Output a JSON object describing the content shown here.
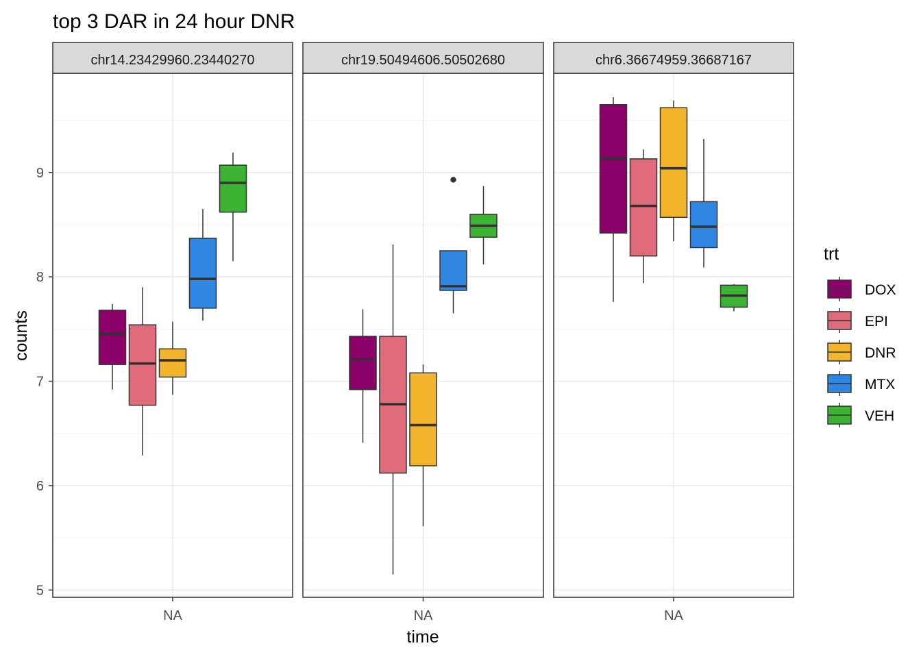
{
  "chart_data": {
    "type": "boxplot",
    "title": "top 3 DAR in 24 hour DNR",
    "xlabel": "time",
    "ylabel": "counts",
    "x_tick": "NA",
    "ylim": [
      4.93,
      9.95
    ],
    "y_ticks": [
      5,
      6,
      7,
      8,
      9
    ],
    "grid": true,
    "legend_title": "trt",
    "legend_position": "right",
    "groups": [
      {
        "name": "DOX",
        "color": "#8B0069"
      },
      {
        "name": "EPI",
        "color": "#E06C7B"
      },
      {
        "name": "DNR",
        "color": "#F1B42B"
      },
      {
        "name": "MTX",
        "color": "#2F87E3"
      },
      {
        "name": "VEH",
        "color": "#3CB332"
      }
    ],
    "panels": [
      {
        "label": "chr14.23429960.23440270",
        "boxes": [
          {
            "group": "DOX",
            "min": 6.92,
            "q1": 7.16,
            "median": 7.45,
            "q3": 7.68,
            "max": 7.74
          },
          {
            "group": "EPI",
            "min": 6.29,
            "q1": 6.77,
            "median": 7.17,
            "q3": 7.54,
            "max": 7.9
          },
          {
            "group": "DNR",
            "min": 6.87,
            "q1": 7.04,
            "median": 7.2,
            "q3": 7.31,
            "max": 7.57
          },
          {
            "group": "MTX",
            "min": 7.58,
            "q1": 7.7,
            "median": 7.98,
            "q3": 8.37,
            "max": 8.65
          },
          {
            "group": "VEH",
            "min": 8.15,
            "q1": 8.62,
            "median": 8.9,
            "q3": 9.07,
            "max": 9.19
          }
        ]
      },
      {
        "label": "chr19.50494606.50502680",
        "boxes": [
          {
            "group": "DOX",
            "min": 6.41,
            "q1": 6.92,
            "median": 7.21,
            "q3": 7.43,
            "max": 7.69
          },
          {
            "group": "EPI",
            "min": 5.15,
            "q1": 6.12,
            "median": 6.78,
            "q3": 7.43,
            "max": 8.31
          },
          {
            "group": "DNR",
            "min": 5.61,
            "q1": 6.19,
            "median": 6.58,
            "q3": 7.08,
            "max": 7.16
          },
          {
            "group": "MTX",
            "min": 7.65,
            "q1": 7.87,
            "median": 7.91,
            "q3": 8.25,
            "max": 8.25,
            "outliers": [
              8.93
            ]
          },
          {
            "group": "VEH",
            "min": 8.12,
            "q1": 8.38,
            "median": 8.49,
            "q3": 8.6,
            "max": 8.87
          }
        ]
      },
      {
        "label": "chr6.36674959.36687167",
        "boxes": [
          {
            "group": "DOX",
            "min": 7.76,
            "q1": 8.42,
            "median": 9.13,
            "q3": 9.65,
            "max": 9.72
          },
          {
            "group": "EPI",
            "min": 7.94,
            "q1": 8.2,
            "median": 8.68,
            "q3": 9.13,
            "max": 9.22
          },
          {
            "group": "DNR",
            "min": 8.34,
            "q1": 8.57,
            "median": 9.04,
            "q3": 9.62,
            "max": 9.69
          },
          {
            "group": "MTX",
            "min": 8.09,
            "q1": 8.28,
            "median": 8.48,
            "q3": 8.72,
            "max": 9.32
          },
          {
            "group": "VEH",
            "min": 7.67,
            "q1": 7.71,
            "median": 7.82,
            "q3": 7.92,
            "max": 7.93
          }
        ]
      }
    ]
  }
}
